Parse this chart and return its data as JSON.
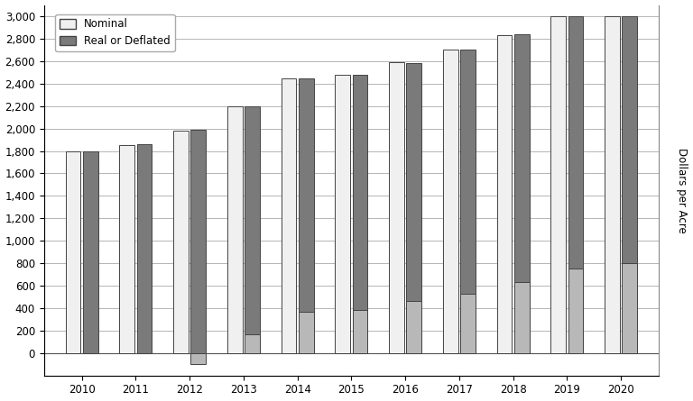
{
  "years": [
    2010,
    2011,
    2012,
    2013,
    2014,
    2015,
    2016,
    2017,
    2018,
    2019,
    2020
  ],
  "nominal": [
    1800,
    1850,
    1980,
    2200,
    2450,
    2480,
    2590,
    2700,
    2830,
    3000,
    3000
  ],
  "real_full": [
    1800,
    1860,
    1990,
    2200,
    2450,
    2480,
    2580,
    2700,
    2840,
    3000,
    3000
  ],
  "real_lower": [
    0,
    0,
    -100,
    170,
    370,
    380,
    460,
    530,
    630,
    750,
    800
  ],
  "nominal_color": "#f0f0f0",
  "real_top_color": "#7a7a7a",
  "real_bottom_color": "#b8b8b8",
  "edge_color": "#444444",
  "background_color": "#ffffff",
  "ylabel": "Dollars per Acre",
  "legend_nominal": "Nominal",
  "legend_real": "Real or Deflated",
  "ylim_min": -200,
  "ylim_max": 3100,
  "yticks": [
    0,
    200,
    400,
    600,
    800,
    1000,
    1200,
    1400,
    1600,
    1800,
    2000,
    2200,
    2400,
    2600,
    2800,
    3000
  ],
  "bar_width": 0.28,
  "bar_gap": 0.04
}
